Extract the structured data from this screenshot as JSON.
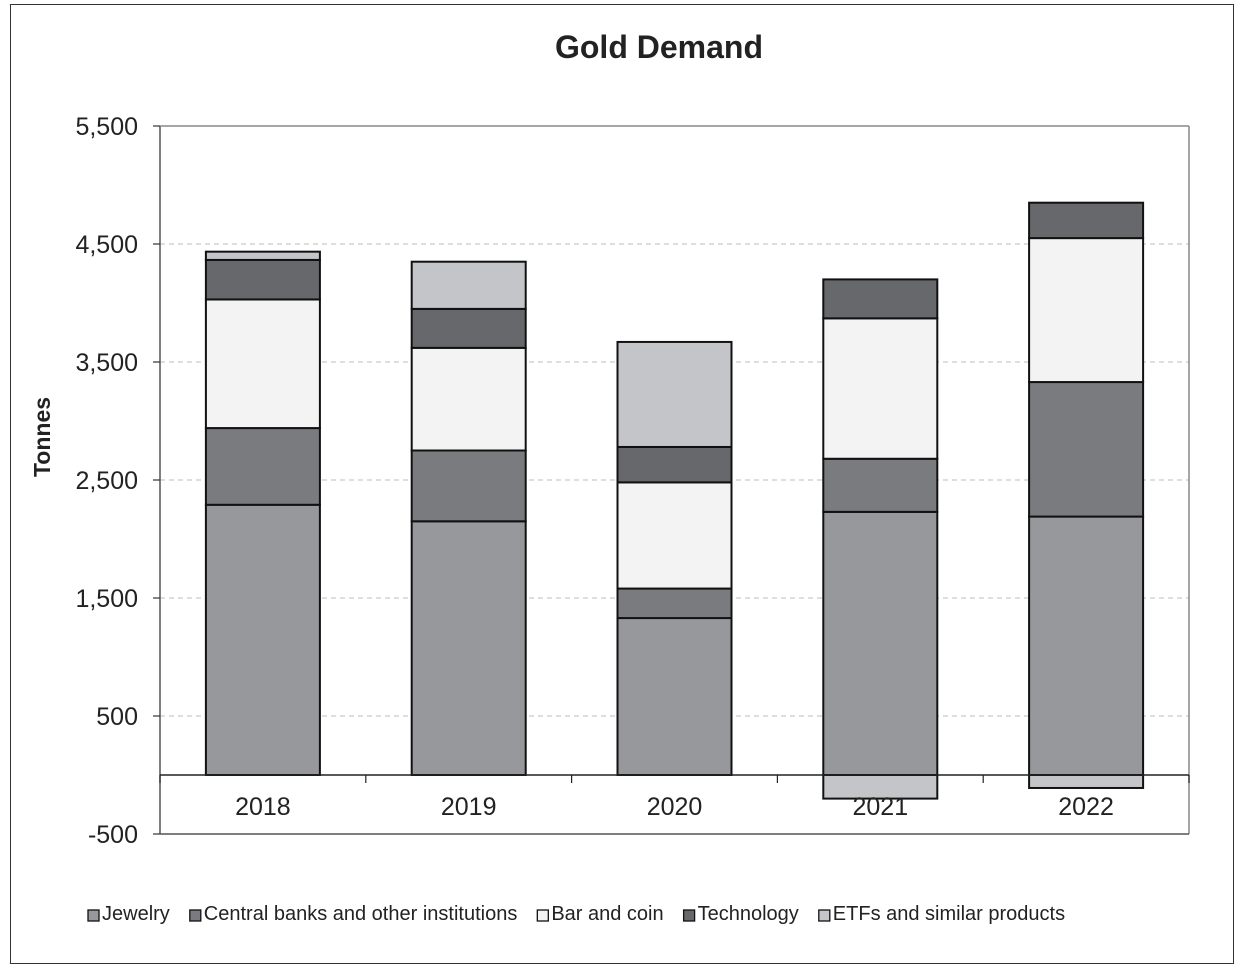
{
  "chart_data": {
    "type": "bar",
    "stacked": true,
    "title": "Gold Demand",
    "xlabel": "",
    "ylabel": "Tonnes",
    "ylim": [
      -500,
      5500
    ],
    "yticks": [
      -500,
      500,
      1500,
      2500,
      3500,
      4500,
      5500
    ],
    "ytick_labels": [
      "-500",
      "500",
      "1,500",
      "2,500",
      "3,500",
      "4,500",
      "5,500"
    ],
    "grid": true,
    "legend_position": "bottom",
    "categories": [
      "2018",
      "2019",
      "2020",
      "2021",
      "2022"
    ],
    "series": [
      {
        "name": "Jewelry",
        "color": "#97989b",
        "values": [
          2290,
          2150,
          1330,
          2230,
          2190
        ]
      },
      {
        "name": "Central banks and other institutions",
        "color": "#7a7b7e",
        "values": [
          650,
          600,
          250,
          450,
          1140
        ]
      },
      {
        "name": "Bar and coin",
        "color": "#f3f3f3",
        "values": [
          1090,
          870,
          900,
          1190,
          1220
        ]
      },
      {
        "name": "Technology",
        "color": "#67686b",
        "values": [
          335,
          330,
          300,
          330,
          300
        ]
      },
      {
        "name": "ETFs and similar products",
        "color": "#c4c5c8",
        "values": [
          70,
          400,
          890,
          -200,
          -110
        ]
      }
    ]
  }
}
